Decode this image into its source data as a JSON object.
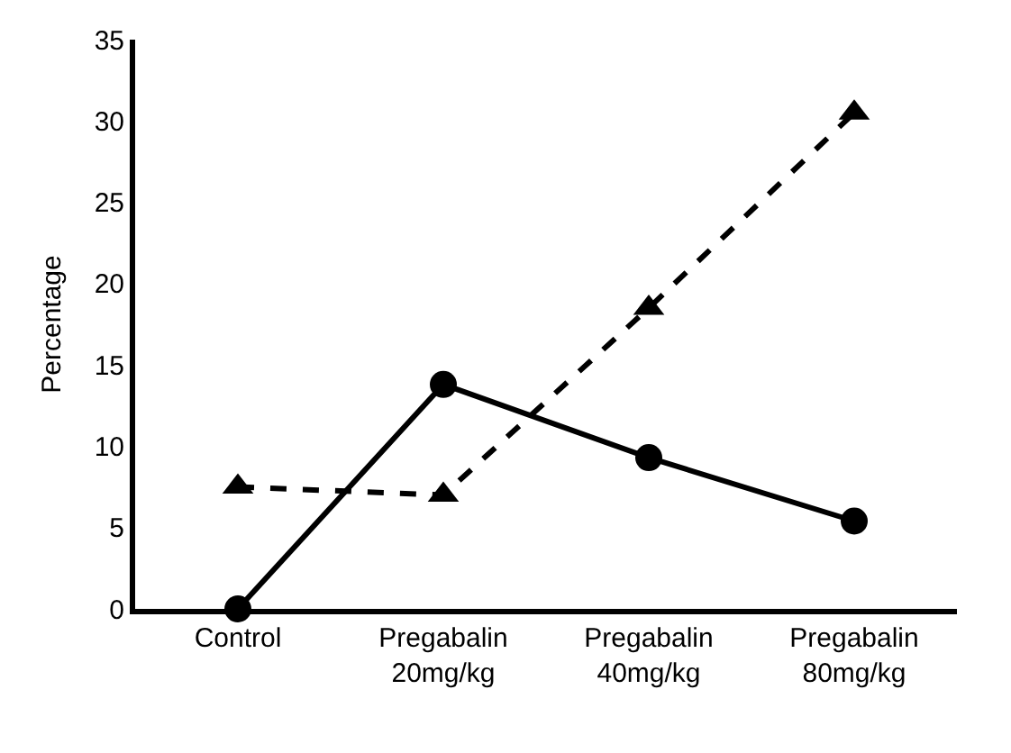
{
  "chart_data": {
    "type": "line",
    "ylabel": "Percentage",
    "categories": [
      "Control",
      "Pregabalin\n20mg/kg",
      "Pregabalin\n40mg/kg",
      "Pregabalin\n80mg/kg"
    ],
    "series": [
      {
        "color": "#000000",
        "values": [
          0,
          13.8,
          9.3,
          5.4
        ],
        "marker": "circle",
        "line_style": "solid"
      },
      {
        "color": "#000000",
        "values": [
          7.5,
          7,
          18.5,
          30.5
        ],
        "marker": "triangle",
        "line_style": "dashed"
      }
    ],
    "ylim": [
      0,
      35
    ],
    "yticks": [
      0,
      5,
      10,
      15,
      20,
      25,
      30,
      35
    ],
    "legend": false
  }
}
